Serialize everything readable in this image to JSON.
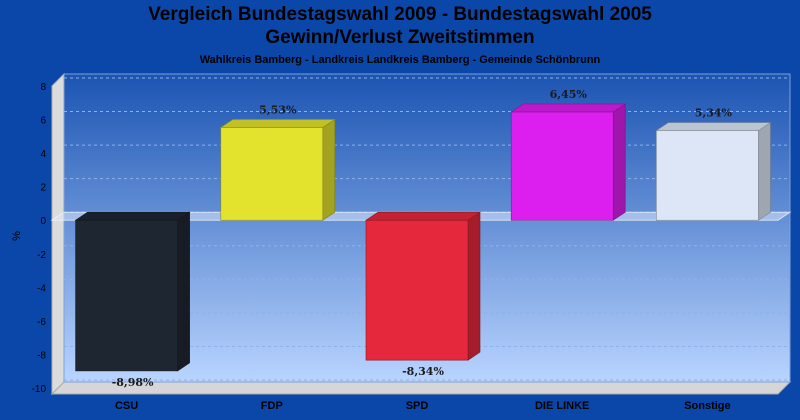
{
  "chart_data": {
    "type": "bar",
    "title": "Vergleich Bundestagswahl 2009 - Bundestagswahl 2005",
    "subtitle": "Gewinn/Verlust Zweitstimmen",
    "region": "Wahlkreis Bamberg - Landkreis Landkreis Bamberg - Gemeinde Schönbrunn",
    "ylabel": "%",
    "ylim": [
      -10,
      8
    ],
    "yticks": [
      8,
      6,
      4,
      2,
      0,
      -2,
      -4,
      -6,
      -8,
      -10
    ],
    "grid": true,
    "categories": [
      "CSU",
      "FDP",
      "SPD",
      "DIE LINKE",
      "Sonstige"
    ],
    "values": [
      -8.98,
      5.53,
      -8.34,
      6.45,
      5.34
    ],
    "data_labels": [
      "-8,98%",
      "5,53%",
      "-8,34%",
      "6,45%",
      "5,34%"
    ],
    "colors": [
      "#1e2632",
      "#e3e32e",
      "#e5283b",
      "#dc1fee",
      "#dce6f6"
    ]
  }
}
